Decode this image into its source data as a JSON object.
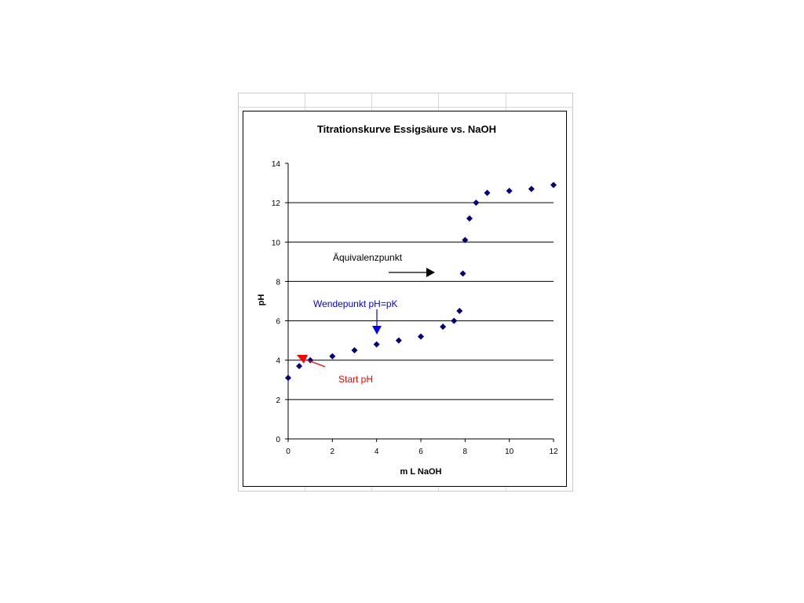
{
  "chart_data": {
    "type": "scatter",
    "title": "Titrationskurve Essigsäure vs. NaOH",
    "xlabel": "m L NaOH",
    "ylabel": "pH",
    "xlim": [
      0,
      12
    ],
    "ylim": [
      0,
      14
    ],
    "xticks": [
      "0",
      "2",
      "4",
      "6",
      "8",
      "10",
      "12"
    ],
    "yticks": [
      "0",
      "2",
      "4",
      "6",
      "8",
      "10",
      "12",
      "14"
    ],
    "grid": "horizontal",
    "marker_color": "#000080",
    "points": [
      {
        "x": 0,
        "y": 3.1
      },
      {
        "x": 0.5,
        "y": 3.7
      },
      {
        "x": 1,
        "y": 4.0
      },
      {
        "x": 2,
        "y": 4.2
      },
      {
        "x": 3,
        "y": 4.5
      },
      {
        "x": 4,
        "y": 4.8
      },
      {
        "x": 5,
        "y": 5.0
      },
      {
        "x": 6,
        "y": 5.2
      },
      {
        "x": 7,
        "y": 5.7
      },
      {
        "x": 7.5,
        "y": 6.0
      },
      {
        "x": 7.75,
        "y": 6.5
      },
      {
        "x": 7.9,
        "y": 8.4
      },
      {
        "x": 8,
        "y": 10.1
      },
      {
        "x": 8.2,
        "y": 11.2
      },
      {
        "x": 8.5,
        "y": 12.0
      },
      {
        "x": 9,
        "y": 12.5
      },
      {
        "x": 10,
        "y": 12.6
      },
      {
        "x": 11,
        "y": 12.7
      },
      {
        "x": 12,
        "y": 12.9
      }
    ],
    "annotations": [
      {
        "text": "Äquivalenzpunkt",
        "color": "#000000"
      },
      {
        "text": "Wendepunkt pH=pK",
        "color": "#0000ff"
      },
      {
        "text": "Start pH",
        "color": "#ff0000"
      }
    ]
  }
}
